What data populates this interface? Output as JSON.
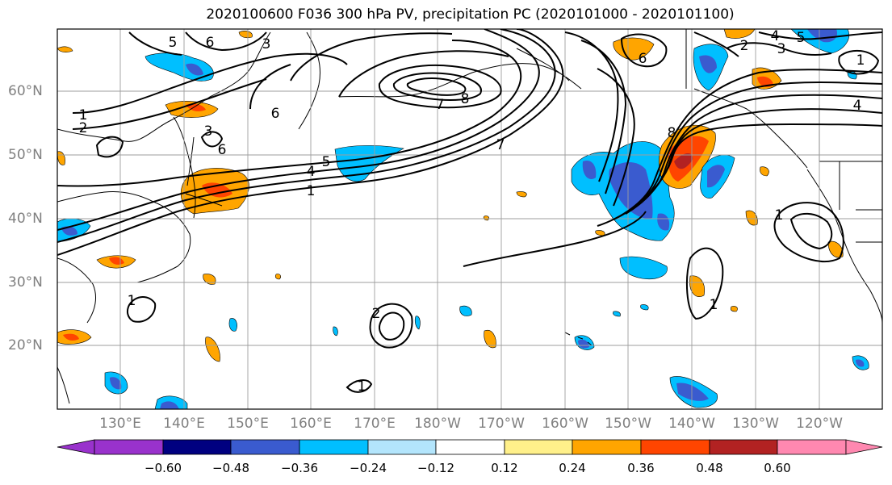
{
  "title": "2020100600 F036 300 hPa PV, precipitation PC (2020101000 - 2020101100)",
  "axes": {
    "lat_labels": [
      "60°N",
      "50°N",
      "40°N",
      "30°N",
      "20°N"
    ],
    "lon_labels": [
      "130°E",
      "140°E",
      "150°E",
      "160°E",
      "170°E",
      "180°W",
      "170°W",
      "160°W",
      "150°W",
      "140°W",
      "130°W",
      "120°W"
    ]
  },
  "colorbar": {
    "tick_labels": [
      "−0.60",
      "−0.48",
      "−0.36",
      "−0.24",
      "−0.12",
      "0.12",
      "0.24",
      "0.36",
      "0.48",
      "0.60"
    ],
    "colors": [
      "#9932cc",
      "#000080",
      "#3a5bcf",
      "#00bfff",
      "#b3e5fc",
      "#ffffff",
      "#fff08a",
      "#ffa500",
      "#ff4500",
      "#b22222",
      "#ff88b0"
    ],
    "extend": "both"
  },
  "contour_labels": [
    {
      "id": "c1a",
      "text": "1"
    },
    {
      "id": "c2a",
      "text": "2"
    },
    {
      "id": "c3a",
      "text": "3"
    },
    {
      "id": "c4a",
      "text": "4"
    },
    {
      "id": "c5a",
      "text": "5"
    },
    {
      "id": "c6a",
      "text": "6"
    },
    {
      "id": "c7a",
      "text": "7"
    },
    {
      "id": "c8a",
      "text": "8"
    },
    {
      "id": "c1b",
      "text": "1"
    },
    {
      "id": "c4b",
      "text": "4"
    },
    {
      "id": "c5b",
      "text": "5"
    },
    {
      "id": "c6b",
      "text": "6"
    },
    {
      "id": "c8b",
      "text": "8"
    },
    {
      "id": "c1c",
      "text": "1"
    },
    {
      "id": "c2b",
      "text": "2"
    },
    {
      "id": "c3b",
      "text": "3"
    },
    {
      "id": "c1d",
      "text": "1"
    },
    {
      "id": "c1e",
      "text": "1"
    },
    {
      "id": "c1f",
      "text": "1"
    },
    {
      "id": "c3c",
      "text": "3"
    },
    {
      "id": "c6c",
      "text": "6"
    },
    {
      "id": "c7b",
      "text": "7"
    },
    {
      "id": "c4c",
      "text": "4"
    },
    {
      "id": "c5c",
      "text": "5"
    },
    {
      "id": "c2c",
      "text": "2"
    },
    {
      "id": "c6d",
      "text": "6"
    },
    {
      "id": "c1g",
      "text": "1"
    }
  ]
}
